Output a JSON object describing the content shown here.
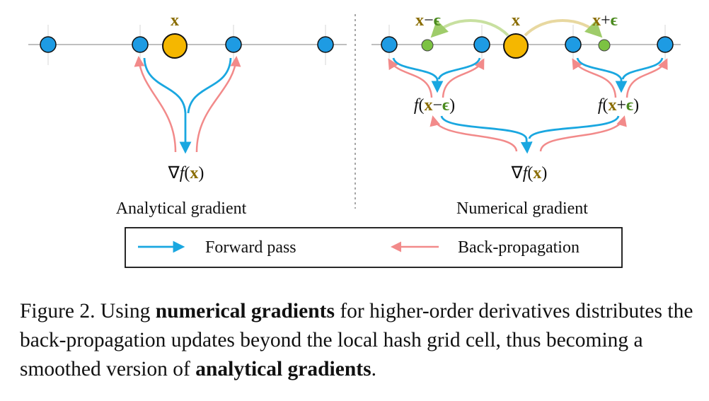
{
  "figure": {
    "left": {
      "x_label": "x",
      "grad_label": "∇f(x)",
      "title": "Analytical gradient"
    },
    "right": {
      "x_label": "x",
      "xm_label": "x−ϵ",
      "xp_label": "x+ϵ",
      "fxm_label": "f(x−ϵ)",
      "fxp_label": "f(x+ϵ)",
      "grad_label": "∇f(x)",
      "title": "Numerical gradient"
    },
    "legend": {
      "forward": "Forward pass",
      "backward": "Back-propagation"
    },
    "colors": {
      "forward": "#1aa7e0",
      "backward": "#f28a8a",
      "node": "#1e9be3",
      "query": "#f5b700",
      "sample": "#7cc242",
      "x_text": "#8a6d00",
      "eps_text": "#4a8a1e"
    }
  },
  "caption": {
    "prefix": "Figure 2. Using ",
    "bold1": "numerical gradients",
    "mid": " for higher-order derivatives distributes the back-propagation updates beyond the local hash grid cell, thus becoming a smoothed version of ",
    "bold2": "analytical gradients",
    "suffix": "."
  }
}
